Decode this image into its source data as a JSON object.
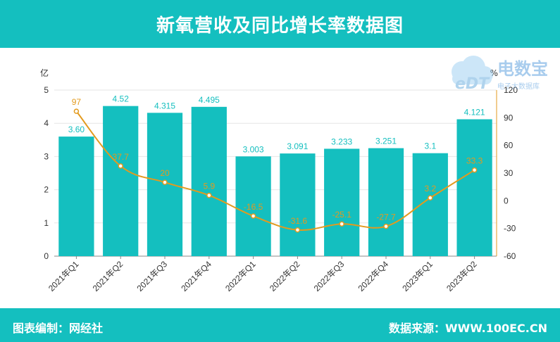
{
  "header": {
    "title": "新氧营收及同比增长率数据图"
  },
  "footer": {
    "left": "图表编制：网经社",
    "right": "数据来源：WWW.100EC.CN"
  },
  "watermark": {
    "logo_text": "eDT",
    "name": "电数宝",
    "sub": "电子大数据库"
  },
  "colors": {
    "bar": "#14bfbf",
    "line": "#e39a1e",
    "header": "#14bfbf"
  },
  "chart_data": {
    "type": "bar",
    "categories": [
      "2021年Q1",
      "2021年Q2",
      "2021年Q3",
      "2021年Q4",
      "2022年Q1",
      "2022年Q2",
      "2022年Q3",
      "2022年Q4",
      "2023年Q1",
      "2023年Q2"
    ],
    "series": [
      {
        "values": [
          3.6,
          4.52,
          4.315,
          4.495,
          3.003,
          3.091,
          3.233,
          3.251,
          3.1,
          4.121
        ],
        "labels": [
          "3.60",
          "4.52",
          "4.315",
          "4.495",
          "3.003",
          "3.091",
          "3.233",
          "3.251",
          "3.1",
          "4.121"
        ],
        "type": "bar",
        "axis": "left"
      },
      {
        "values": [
          97,
          37.7,
          20,
          5.9,
          -16.5,
          -31.6,
          -25.1,
          -27.7,
          3.2,
          33.3
        ],
        "labels": [
          "97",
          "37.7",
          "20",
          "5.9",
          "-16.5",
          "-31.6",
          "-25.1",
          "-27.7",
          "3.2",
          "33.3"
        ],
        "type": "line",
        "axis": "right"
      }
    ],
    "ylabel_left": "亿",
    "ylabel_right": "%",
    "ylim_left": [
      0,
      5
    ],
    "ylim_right": [
      -60,
      120
    ],
    "yticks_left": [
      0,
      1,
      2,
      3,
      4,
      5
    ],
    "yticks_right": [
      -60,
      -30,
      0,
      30,
      60,
      90,
      120
    ],
    "grid": true
  }
}
